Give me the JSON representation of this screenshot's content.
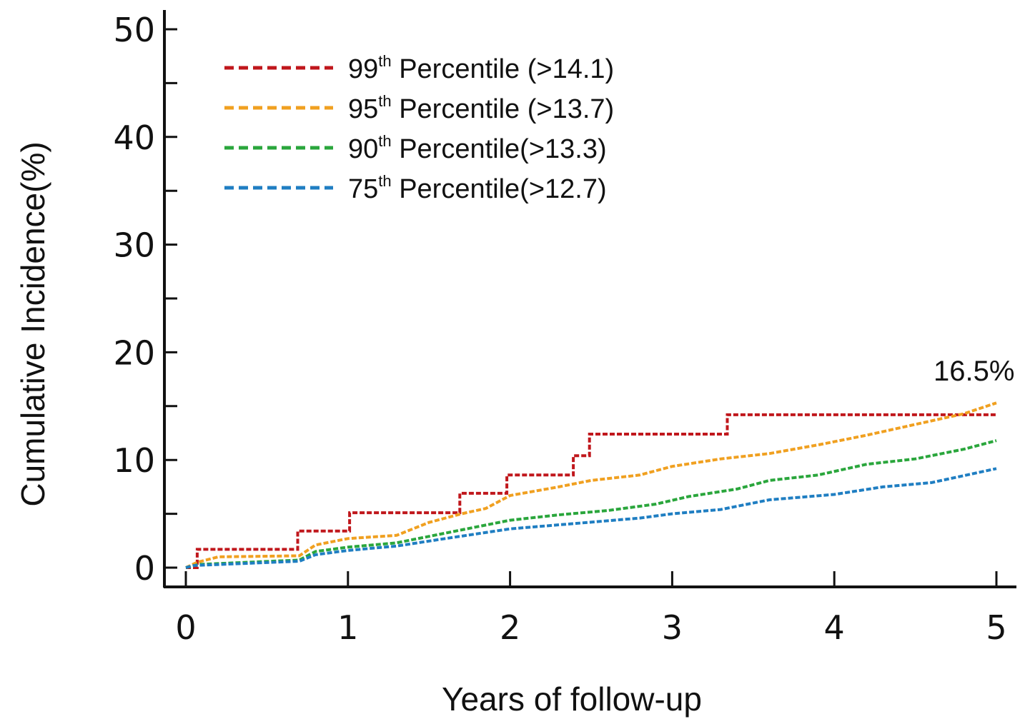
{
  "chart_data": {
    "type": "line",
    "step": true,
    "xlabel": "Years of follow-up",
    "ylabel": "Cumulative Incidence(%)",
    "xlim": [
      0,
      5
    ],
    "ylim": [
      0,
      50
    ],
    "x_ticks": [
      "0",
      "1",
      "2",
      "3",
      "4",
      "5"
    ],
    "y_ticks": [
      "0",
      "10",
      "20",
      "30",
      "40",
      "50"
    ],
    "x_tick_values": [
      0,
      1,
      2,
      3,
      4,
      5
    ],
    "y_tick_values": [
      0,
      10,
      20,
      30,
      40,
      50
    ],
    "y_minor_ticks": [
      5,
      15,
      25,
      35,
      45
    ],
    "grid": false,
    "legend_position": "top-left",
    "annotation": "16.5%",
    "series": [
      {
        "name": "99",
        "name_sup": "th",
        "name_suffix": " Percentile (>14.1)",
        "color": "#c0171c",
        "points": [
          [
            0,
            0
          ],
          [
            0.07,
            0
          ],
          [
            0.07,
            1.7
          ],
          [
            0.69,
            1.7
          ],
          [
            0.69,
            3.4
          ],
          [
            1.01,
            3.4
          ],
          [
            1.01,
            5.1
          ],
          [
            1.69,
            5.1
          ],
          [
            1.69,
            6.9
          ],
          [
            1.98,
            6.9
          ],
          [
            1.98,
            8.6
          ],
          [
            2.39,
            8.6
          ],
          [
            2.39,
            10.4
          ],
          [
            2.49,
            10.4
          ],
          [
            2.49,
            12.4
          ],
          [
            3.34,
            12.4
          ],
          [
            3.34,
            14.2
          ],
          [
            5.0,
            14.2
          ]
        ]
      },
      {
        "name": "95",
        "name_sup": "th",
        "name_suffix": " Percentile (>13.7)",
        "color": "#f0a020",
        "points": [
          [
            0,
            0
          ],
          [
            0.07,
            0.5
          ],
          [
            0.2,
            1.0
          ],
          [
            0.7,
            1.1
          ],
          [
            0.8,
            2.1
          ],
          [
            1.0,
            2.7
          ],
          [
            1.3,
            3.0
          ],
          [
            1.5,
            4.2
          ],
          [
            1.7,
            5.0
          ],
          [
            1.85,
            5.5
          ],
          [
            2.0,
            6.7
          ],
          [
            2.3,
            7.5
          ],
          [
            2.5,
            8.1
          ],
          [
            2.8,
            8.6
          ],
          [
            3.0,
            9.4
          ],
          [
            3.3,
            10.1
          ],
          [
            3.6,
            10.6
          ],
          [
            3.9,
            11.4
          ],
          [
            4.2,
            12.3
          ],
          [
            4.5,
            13.3
          ],
          [
            4.8,
            14.3
          ],
          [
            5.0,
            15.3
          ]
        ]
      },
      {
        "name": "90",
        "name_sup": "th",
        "name_suffix": " Percentile(>13.3)",
        "color": "#2aa63c",
        "points": [
          [
            0,
            0
          ],
          [
            0.08,
            0.3
          ],
          [
            0.7,
            0.7
          ],
          [
            0.8,
            1.5
          ],
          [
            1.0,
            1.9
          ],
          [
            1.3,
            2.3
          ],
          [
            1.6,
            3.2
          ],
          [
            2.0,
            4.4
          ],
          [
            2.3,
            4.9
          ],
          [
            2.6,
            5.3
          ],
          [
            2.9,
            5.9
          ],
          [
            3.1,
            6.6
          ],
          [
            3.4,
            7.3
          ],
          [
            3.6,
            8.1
          ],
          [
            3.9,
            8.6
          ],
          [
            4.2,
            9.6
          ],
          [
            4.5,
            10.1
          ],
          [
            4.8,
            11.0
          ],
          [
            5.0,
            11.8
          ]
        ]
      },
      {
        "name": "75",
        "name_sup": "th",
        "name_suffix": " Percentile(>12.7)",
        "color": "#1f7ec2",
        "points": [
          [
            0,
            0
          ],
          [
            0.05,
            0.2
          ],
          [
            0.7,
            0.6
          ],
          [
            0.8,
            1.2
          ],
          [
            1.0,
            1.6
          ],
          [
            1.3,
            2.0
          ],
          [
            1.6,
            2.7
          ],
          [
            2.0,
            3.6
          ],
          [
            2.4,
            4.1
          ],
          [
            2.8,
            4.6
          ],
          [
            3.0,
            5.0
          ],
          [
            3.3,
            5.4
          ],
          [
            3.6,
            6.3
          ],
          [
            4.0,
            6.8
          ],
          [
            4.3,
            7.5
          ],
          [
            4.6,
            7.9
          ],
          [
            5.0,
            9.2
          ]
        ]
      }
    ]
  }
}
